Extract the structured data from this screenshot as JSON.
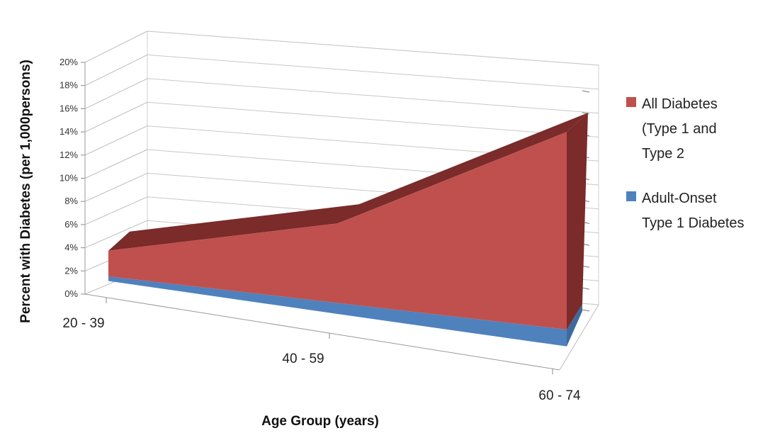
{
  "chart_data": {
    "type": "area",
    "style": "3d",
    "categories": [
      "20 - 39",
      "40 - 59",
      "60 - 74"
    ],
    "series": [
      {
        "name": "All Diabetes (Type 1 and Type 2",
        "values": [
          2.2,
          6.8,
          16.9
        ],
        "color": "#c0504d",
        "top_color": "#7a2b2a"
      },
      {
        "name": "Adult-Onset Type 1 Diabetes",
        "values": [
          0.15,
          0.7,
          1.2
        ],
        "color": "#4f81bd"
      }
    ],
    "xlabel": "Age Group (years)",
    "ylabel": "Percent with Diabetes (per 1,000persons)",
    "ylim": [
      0,
      20
    ],
    "yticks": [
      "0%",
      "2%",
      "4%",
      "6%",
      "8%",
      "10%",
      "12%",
      "14%",
      "16%",
      "18%",
      "20%"
    ],
    "grid": true,
    "legend_position": "right"
  }
}
